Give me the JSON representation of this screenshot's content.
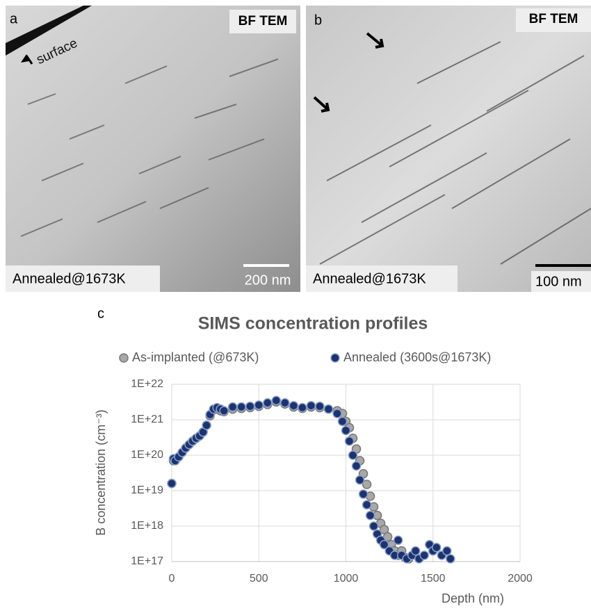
{
  "panels": [
    {
      "label": "a",
      "method": "BF TEM",
      "annotation": "surface",
      "condition": "Annealed@1673K",
      "scale_bar": "200 nm"
    },
    {
      "label": "b",
      "method": "BF TEM",
      "condition": "Annealed@1673K",
      "scale_bar": "100 nm"
    }
  ],
  "chart_label": "c",
  "chart_data": {
    "type": "scatter",
    "title": "SIMS concentration profiles",
    "x_label": "Depth (nm)",
    "y_label": "B concentration  (cm⁻³)",
    "xlim": [
      0,
      2000
    ],
    "xticks": [
      0,
      500,
      1000,
      1500,
      2000
    ],
    "ylim": [
      1e+17,
      1e+22
    ],
    "ylog": true,
    "grid": true,
    "legend": "top",
    "yticks": [
      {
        "value": 1e+17,
        "label": "1E+17"
      },
      {
        "value": 1e+18,
        "label": "1E+18"
      },
      {
        "value": 1e+19,
        "label": "1E+19"
      },
      {
        "value": 1e+20,
        "label": "1E+20"
      },
      {
        "value": 1e+21,
        "label": "1E+21"
      },
      {
        "value": 1e+22,
        "label": "1E+22"
      }
    ],
    "series": [
      {
        "name": "As-implanted (@673K)",
        "color": "#a8a8a8",
        "x": [
          0,
          10,
          20,
          40,
          60,
          80,
          100,
          120,
          140,
          160,
          180,
          200,
          220,
          240,
          260,
          280,
          300,
          350,
          400,
          450,
          500,
          550,
          600,
          650,
          700,
          750,
          800,
          850,
          900,
          950,
          980,
          1000,
          1020,
          1040,
          1060,
          1080,
          1100,
          1120,
          1140,
          1160,
          1180,
          1200,
          1220,
          1240,
          1260,
          1280,
          1300,
          1320,
          1340,
          1360
        ],
        "values": [
          1.6e+19,
          7e+19,
          7e+19,
          9e+19,
          1.2e+20,
          1.6e+20,
          2e+20,
          2.5e+20,
          3e+20,
          3.5e+20,
          4.5e+20,
          7e+20,
          1.3e+21,
          1.9e+21,
          2e+21,
          1.8e+21,
          1.7e+21,
          2e+21,
          2.1e+21,
          2.2e+21,
          2.4e+21,
          2.7e+21,
          3.2e+21,
          2.8e+21,
          2.3e+21,
          2.1e+21,
          2.3e+21,
          2.2e+21,
          2e+21,
          1.8e+21,
          1.5e+21,
          9e+20,
          6e+20,
          3e+20,
          1.5e+20,
          7e+19,
          3e+19,
          1.5e+19,
          7e+18,
          3.5e+18,
          2e+18,
          1.2e+18,
          8e+17,
          5e+17,
          3e+17,
          2e+17,
          1.5e+17,
          2e+17,
          1.3e+17,
          1.2e+17
        ]
      },
      {
        "name": "Annealed (3600s@1673K)",
        "color": "#1c3370",
        "x": [
          0,
          10,
          20,
          40,
          60,
          80,
          100,
          120,
          140,
          160,
          180,
          200,
          220,
          240,
          260,
          280,
          300,
          350,
          400,
          450,
          500,
          550,
          600,
          650,
          700,
          750,
          800,
          850,
          900,
          950,
          980,
          1000,
          1020,
          1040,
          1060,
          1080,
          1100,
          1120,
          1140,
          1160,
          1180,
          1200,
          1220,
          1250,
          1280,
          1300,
          1320,
          1350,
          1380,
          1400,
          1420,
          1450,
          1480,
          1500,
          1520,
          1550,
          1580,
          1600
        ],
        "values": [
          1.6e+19,
          8e+19,
          7e+19,
          9e+19,
          1.2e+20,
          1.6e+20,
          2e+20,
          2.5e+20,
          3e+20,
          3.5e+20,
          4.5e+20,
          7e+20,
          1.4e+21,
          2e+21,
          2.2e+21,
          2e+21,
          1.8e+21,
          2.3e+21,
          2.3e+21,
          2.4e+21,
          2.6e+21,
          3e+21,
          3.5e+21,
          3e+21,
          2.5e+21,
          2.2e+21,
          2.5e+21,
          2.4e+21,
          2e+21,
          1.5e+21,
          9e+20,
          5e+20,
          2.5e+20,
          1e+20,
          5e+19,
          2e+19,
          8e+18,
          4e+18,
          2e+18,
          1e+18,
          6e+17,
          4e+17,
          3e+17,
          2e+17,
          1.5e+17,
          4e+17,
          1.5e+17,
          1.2e+17,
          1.5e+17,
          2e+17,
          1.2e+17,
          1.5e+17,
          3e+17,
          2e+17,
          2.5e+17,
          1.5e+17,
          2e+17,
          1.2e+17
        ]
      }
    ]
  }
}
